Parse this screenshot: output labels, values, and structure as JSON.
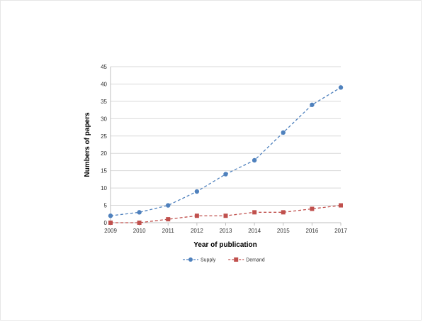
{
  "chart_data": {
    "type": "line",
    "title": "",
    "xlabel": "Year of publication",
    "ylabel": "Numbers of papers",
    "x": [
      2009,
      2010,
      2011,
      2012,
      2013,
      2014,
      2015,
      2016,
      2017
    ],
    "ylim": [
      0,
      45
    ],
    "yticks": [
      0,
      5,
      10,
      15,
      20,
      25,
      30,
      35,
      40,
      45
    ],
    "grid": true,
    "legend_position": "bottom",
    "series": [
      {
        "name": "Supply",
        "color": "#4f81bd",
        "marker": "circle",
        "line_style": "dashed",
        "values": [
          2,
          3,
          5,
          9,
          14,
          18,
          26,
          34,
          39
        ]
      },
      {
        "name": "Demand",
        "color": "#c0504d",
        "marker": "square",
        "line_style": "dashed",
        "values": [
          0,
          0,
          1,
          2,
          2,
          3,
          3,
          4,
          5
        ]
      }
    ]
  }
}
